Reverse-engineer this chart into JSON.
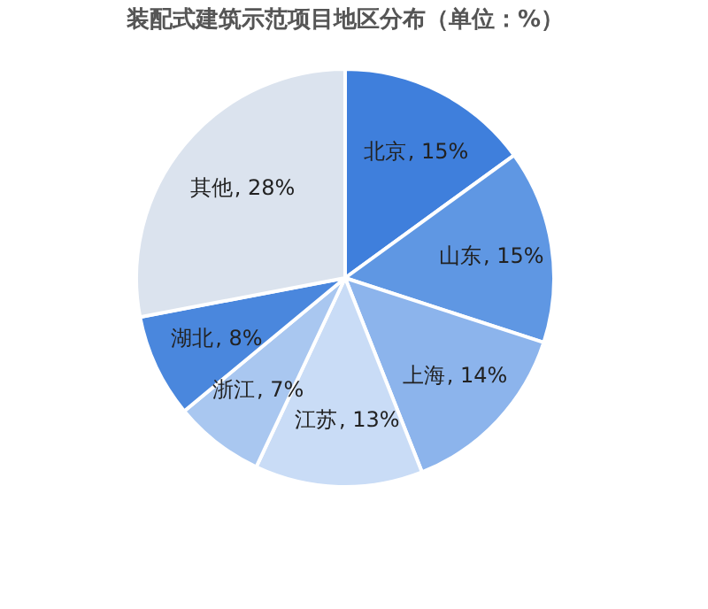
{
  "chart_data": {
    "type": "pie",
    "title": "装配式建筑示范项目地区分布（单位：%）",
    "categories": [
      "北京",
      "山东",
      "上海",
      "江苏",
      "浙江",
      "湖北",
      "其他"
    ],
    "values": [
      15,
      15,
      14,
      13,
      7,
      8,
      28
    ],
    "colors": [
      "#3f7fdc",
      "#5f97e3",
      "#8cb4ec",
      "#c9dcf6",
      "#a9c7f0",
      "#4a87dd",
      "#dbe3ee"
    ],
    "value_labels": [
      ", 15%",
      ", 15%",
      ", 14%",
      ", 13%",
      ", 7%",
      ", 8%",
      ", 28%"
    ],
    "legend": false
  }
}
